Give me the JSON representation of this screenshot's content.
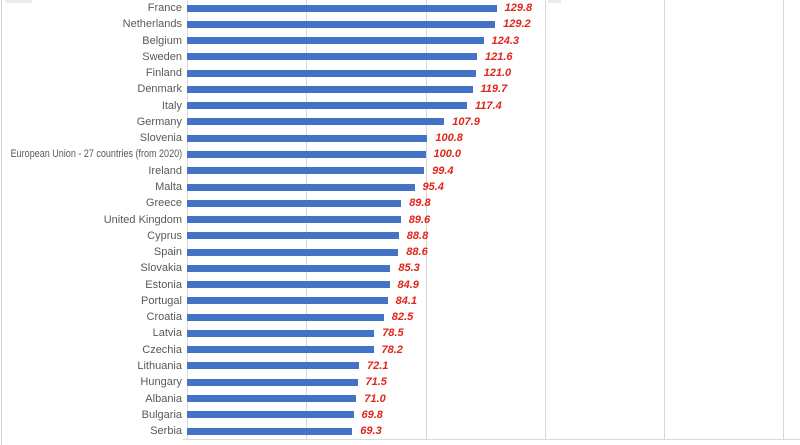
{
  "chart_data": {
    "type": "bar",
    "orientation": "horizontal",
    "title": "",
    "xlabel": "",
    "ylabel": "",
    "legend": "none",
    "grid": "vertical gridlines on",
    "xlim": [
      0,
      257
    ],
    "x_gridlines": [
      0,
      50,
      100,
      150,
      200,
      250
    ],
    "data_label_style": "bold italic red, outside end, one decimal",
    "categories": [
      "France",
      "Netherlands",
      "Belgium",
      "Sweden",
      "Finland",
      "Denmark",
      "Italy",
      "Germany",
      "Slovenia",
      "European Union - 27 countries (from 2020)",
      "Ireland",
      "Malta",
      "Greece",
      "United Kingdom",
      "Cyprus",
      "Spain",
      "Slovakia",
      "Estonia",
      "Portugal",
      "Croatia",
      "Latvia",
      "Czechia",
      "Lithuania",
      "Hungary",
      "Albania",
      "Bulgaria",
      "Serbia"
    ],
    "values": [
      129.8,
      129.2,
      124.3,
      121.6,
      121.0,
      119.7,
      117.4,
      107.9,
      100.8,
      100.0,
      99.4,
      95.4,
      89.8,
      89.6,
      88.8,
      88.6,
      85.3,
      84.9,
      84.1,
      82.5,
      78.5,
      78.2,
      72.1,
      71.5,
      71.0,
      69.8,
      69.3
    ],
    "value_labels": [
      "129.8",
      "129.2",
      "124.3",
      "121.6",
      "121.0",
      "119.7",
      "117.4",
      "107.9",
      "100.8",
      "100.0",
      "99.4",
      "95.4",
      "89.8",
      "89.6",
      "88.8",
      "88.6",
      "85.3",
      "84.9",
      "84.1",
      "82.5",
      "78.5",
      "78.2",
      "72.1",
      "71.5",
      "71.0",
      "69.8",
      "69.3"
    ]
  },
  "colors": {
    "bar": "#4472c4",
    "value_label": "#e0251c",
    "category_label": "#595959",
    "gridline": "#d9d9d9",
    "background": "#ffffff",
    "window_edge": "#d4d4d4"
  }
}
